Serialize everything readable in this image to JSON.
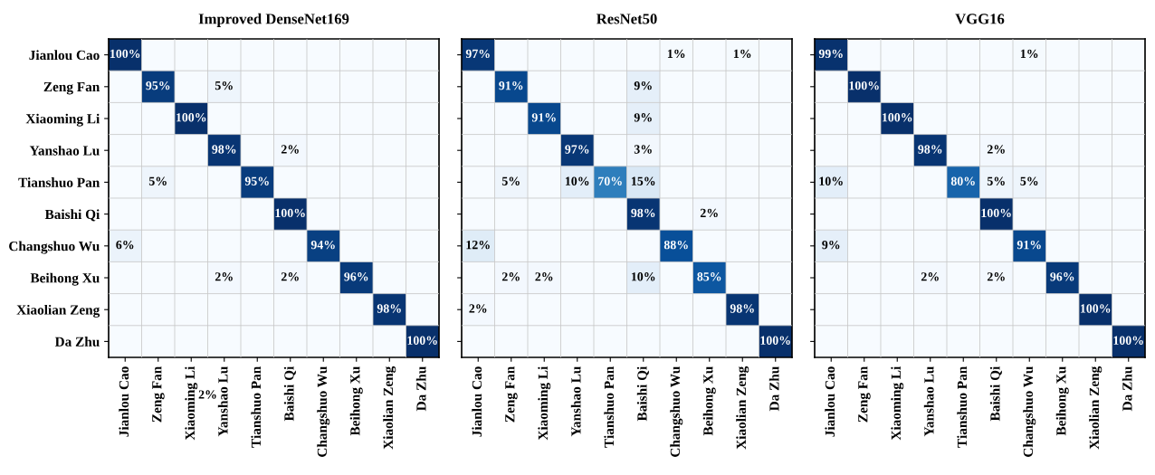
{
  "chart_data": [
    {
      "type": "heatmap",
      "title": "Improved DenseNet169",
      "categories": [
        "Jianlou Cao",
        "Zeng Fan",
        "Xiaoming Li",
        "Yanshao Lu",
        "Tianshuo Pan",
        "Baishi Qi",
        "Changshuo Wu",
        "Beihong Xu",
        "Xiaolian Zeng",
        "Da Zhu"
      ],
      "y_categories": [
        "Jianlou Cao",
        "Zeng Fan",
        "Xiaoming Li",
        "Yanshao Lu",
        "Tianshuo Pan",
        "Baishi Qi",
        "Changshuo Wu",
        "Beihong Xu",
        "Xiaolian Zeng",
        "Da Zhu"
      ],
      "grid": true,
      "cells": [
        [
          100,
          null,
          null,
          null,
          null,
          null,
          null,
          null,
          null,
          null
        ],
        [
          null,
          95,
          null,
          5,
          null,
          null,
          null,
          null,
          null,
          null
        ],
        [
          null,
          null,
          100,
          null,
          null,
          null,
          null,
          null,
          null,
          null
        ],
        [
          null,
          null,
          null,
          98,
          null,
          2,
          null,
          null,
          null,
          null
        ],
        [
          null,
          5,
          null,
          null,
          95,
          null,
          null,
          null,
          null,
          null
        ],
        [
          null,
          null,
          null,
          null,
          null,
          100,
          null,
          null,
          null,
          null
        ],
        [
          6,
          null,
          null,
          null,
          null,
          null,
          94,
          null,
          null,
          null
        ],
        [
          null,
          null,
          null,
          2,
          null,
          2,
          null,
          96,
          null,
          null
        ],
        [
          null,
          null,
          null,
          null,
          null,
          null,
          null,
          null,
          98,
          null
        ],
        [
          null,
          null,
          null,
          null,
          null,
          null,
          null,
          null,
          null,
          100
        ]
      ],
      "cell_labels": [
        [
          "100%",
          null,
          null,
          null,
          null,
          null,
          null,
          null,
          null,
          null
        ],
        [
          null,
          "95%",
          null,
          "5%",
          null,
          null,
          null,
          null,
          null,
          null
        ],
        [
          null,
          null,
          "100%",
          null,
          null,
          null,
          null,
          null,
          null,
          null
        ],
        [
          null,
          null,
          null,
          "98%",
          null,
          "2%",
          null,
          null,
          null,
          null
        ],
        [
          null,
          "5%",
          null,
          null,
          "95%",
          null,
          null,
          null,
          null,
          null
        ],
        [
          null,
          null,
          null,
          null,
          null,
          "100%",
          null,
          null,
          null,
          null
        ],
        [
          "6%",
          null,
          null,
          null,
          null,
          null,
          "94%",
          null,
          null,
          null
        ],
        [
          null,
          null,
          null,
          "2%",
          null,
          "2%",
          null,
          "96%",
          null,
          null
        ],
        [
          null,
          null,
          null,
          null,
          null,
          null,
          null,
          null,
          "98%",
          null
        ],
        [
          null,
          null,
          null,
          null,
          null,
          null,
          null,
          null,
          null,
          "100%"
        ]
      ],
      "annotations": [
        "2%"
      ]
    },
    {
      "type": "heatmap",
      "title": "ResNet50",
      "cell_labels": [
        [
          "97%",
          null,
          null,
          null,
          null,
          null,
          "1%",
          null,
          "1%",
          null
        ],
        [
          null,
          "91%",
          null,
          null,
          null,
          "9%",
          null,
          null,
          null,
          null
        ],
        [
          null,
          null,
          "91%",
          null,
          null,
          "9%",
          null,
          null,
          null,
          null
        ],
        [
          null,
          null,
          null,
          "97%",
          null,
          "3%",
          null,
          null,
          null,
          null
        ],
        [
          null,
          "5%",
          null,
          "10%",
          "70%",
          "15%",
          null,
          null,
          null,
          null
        ],
        [
          null,
          null,
          null,
          null,
          null,
          "98%",
          null,
          "2%",
          null,
          null
        ],
        [
          "12%",
          null,
          null,
          null,
          null,
          null,
          "88%",
          null,
          null,
          null
        ],
        [
          null,
          "2%",
          "2%",
          null,
          null,
          "10%",
          null,
          "85%",
          null,
          null
        ],
        [
          "2%",
          null,
          null,
          null,
          null,
          null,
          null,
          null,
          "98%",
          null
        ],
        [
          null,
          null,
          null,
          null,
          null,
          null,
          null,
          null,
          null,
          "100%"
        ]
      ],
      "categories": [
        "Jianlou Cao",
        "Zeng Fan",
        "Xiaoming Li",
        "Yanshao Lu",
        "Tianshuo Pan",
        "Baishi Qi",
        "Changshuo Wu",
        "Beihong Xu",
        "Xiaolian Zeng",
        "Da Zhu"
      ],
      "y_categories": [
        null,
        null,
        null,
        null,
        null,
        null,
        null,
        null,
        null,
        null
      ],
      "grid": true,
      "cells": [
        [
          97,
          null,
          null,
          null,
          null,
          null,
          1,
          null,
          1,
          null
        ],
        [
          null,
          91,
          null,
          null,
          null,
          9,
          null,
          null,
          null,
          null
        ],
        [
          null,
          null,
          91,
          null,
          null,
          9,
          null,
          null,
          null,
          null
        ],
        [
          null,
          null,
          null,
          97,
          null,
          3,
          null,
          null,
          null,
          null
        ],
        [
          null,
          5,
          null,
          10,
          70,
          15,
          null,
          null,
          null,
          null
        ],
        [
          null,
          null,
          null,
          null,
          null,
          98,
          null,
          2,
          null,
          null
        ],
        [
          12,
          null,
          null,
          null,
          null,
          null,
          88,
          null,
          null,
          null
        ],
        [
          null,
          2,
          2,
          null,
          null,
          10,
          null,
          85,
          null,
          null
        ],
        [
          2,
          null,
          null,
          null,
          null,
          null,
          null,
          null,
          98,
          null
        ],
        [
          null,
          null,
          null,
          null,
          null,
          null,
          null,
          null,
          null,
          100
        ]
      ]
    },
    {
      "type": "heatmap",
      "title": "VGG16",
      "cell_labels": [
        [
          "99%",
          null,
          null,
          null,
          null,
          null,
          "1%",
          null,
          null,
          null
        ],
        [
          null,
          "100%",
          null,
          null,
          null,
          null,
          null,
          null,
          null,
          null
        ],
        [
          null,
          null,
          "100%",
          null,
          null,
          null,
          null,
          null,
          null,
          null
        ],
        [
          null,
          null,
          null,
          "98%",
          null,
          "2%",
          null,
          null,
          null,
          null
        ],
        [
          "10%",
          null,
          null,
          null,
          "80%",
          "5%",
          "5%",
          null,
          null,
          null
        ],
        [
          null,
          null,
          null,
          null,
          null,
          "100%",
          null,
          null,
          null,
          null
        ],
        [
          "9%",
          null,
          null,
          null,
          null,
          null,
          "91%",
          null,
          null,
          null
        ],
        [
          null,
          null,
          null,
          "2%",
          null,
          "2%",
          null,
          "96%",
          null,
          null
        ],
        [
          null,
          null,
          null,
          null,
          null,
          null,
          null,
          null,
          "100%",
          null
        ],
        [
          null,
          null,
          null,
          null,
          null,
          null,
          null,
          null,
          null,
          "100%"
        ]
      ],
      "categories": [
        "Jianlou Cao",
        "Zeng Fan",
        "Xiaoming Li",
        "Yanshao Lu",
        "Tianshuo Pan",
        "Baishi Qi",
        "Changshuo Wu",
        "Beihong Xu",
        "Xiaolian Zeng",
        "Da Zhu"
      ],
      "y_categories": [
        null,
        null,
        null,
        null,
        null,
        null,
        null,
        null,
        null,
        null
      ],
      "grid": true,
      "cells": [
        [
          99,
          null,
          null,
          null,
          null,
          null,
          1,
          null,
          null,
          null
        ],
        [
          null,
          100,
          null,
          null,
          null,
          null,
          null,
          null,
          null,
          null
        ],
        [
          null,
          null,
          100,
          null,
          null,
          null,
          null,
          null,
          null,
          null
        ],
        [
          null,
          null,
          null,
          98,
          null,
          2,
          null,
          null,
          null,
          null
        ],
        [
          10,
          null,
          null,
          null,
          80,
          5,
          5,
          null,
          null,
          null
        ],
        [
          null,
          null,
          null,
          null,
          null,
          100,
          null,
          null,
          null,
          null
        ],
        [
          9,
          null,
          null,
          null,
          null,
          null,
          91,
          null,
          null,
          null
        ],
        [
          null,
          null,
          null,
          2,
          null,
          2,
          null,
          96,
          null,
          null
        ],
        [
          null,
          null,
          null,
          null,
          null,
          null,
          null,
          null,
          100,
          null
        ],
        [
          null,
          null,
          null,
          null,
          null,
          null,
          null,
          null,
          null,
          100
        ]
      ]
    }
  ]
}
